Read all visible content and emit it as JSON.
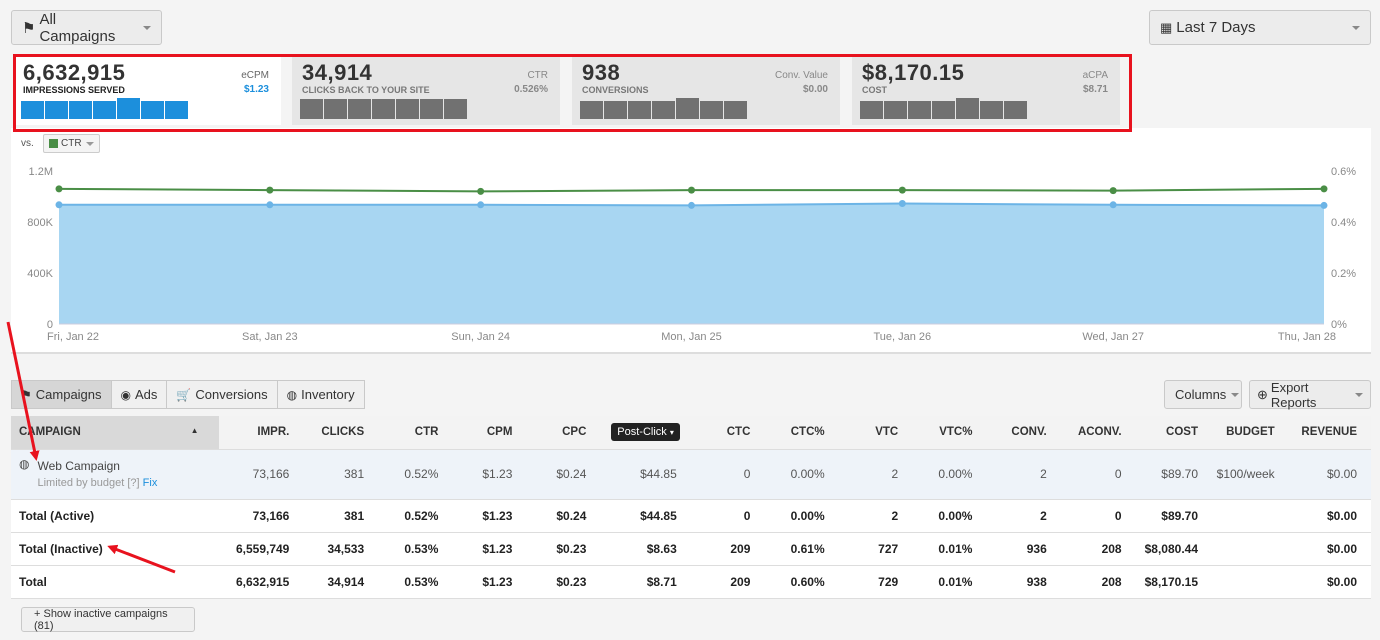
{
  "header": {
    "campaign_select": "All Campaigns",
    "date_select": "Last 7 Days"
  },
  "stats": [
    {
      "value": "6,632,915",
      "label": "IMPRESSIONS SERVED",
      "side_label": "eCPM",
      "side_value": "$1.23"
    },
    {
      "value": "34,914",
      "label": "CLICKS BACK TO YOUR SITE",
      "side_label": "CTR",
      "side_value": "0.526%"
    },
    {
      "value": "938",
      "label": "CONVERSIONS",
      "side_label": "Conv. Value",
      "side_value": "$0.00"
    },
    {
      "value": "$8,170.15",
      "label": "COST",
      "side_label": "aCPA",
      "side_value": "$8.71"
    }
  ],
  "compare": {
    "vs_label": "vs.",
    "metric": "CTR"
  },
  "chart_data": {
    "type": "area",
    "x": [
      "Fri, Jan 22",
      "Sat, Jan 23",
      "Sun, Jan 24",
      "Mon, Jan 25",
      "Tue, Jan 26",
      "Wed, Jan 27",
      "Thu, Jan 28"
    ],
    "series": [
      {
        "values": [
          935000,
          935000,
          935000,
          930000,
          945000,
          935000,
          930000
        ],
        "axis": "left",
        "color": "#6cb4e6",
        "fill": "#a8d6f2"
      },
      {
        "name": "CTR",
        "values": [
          0.53,
          0.525,
          0.52,
          0.525,
          0.525,
          0.523,
          0.53
        ],
        "axis": "right",
        "color": "#4a8e46"
      }
    ],
    "y_left_ticks": [
      "1.2M",
      "800K",
      "400K",
      "0"
    ],
    "y_right_ticks": [
      "0.6%",
      "0.4%",
      "0.2%",
      "0%"
    ],
    "ylim_left": [
      0,
      1200000
    ],
    "ylim_right": [
      0,
      0.6
    ],
    "grid": false
  },
  "tabs": [
    "Campaigns",
    "Ads",
    "Conversions",
    "Inventory"
  ],
  "toolbar": {
    "columns": "Columns",
    "export": "Export Reports"
  },
  "table": {
    "headers": [
      "CAMPAIGN",
      "IMPR.",
      "CLICKS",
      "CTR",
      "CPM",
      "CPC",
      "Post-Click",
      "CTC",
      "CTC%",
      "VTC",
      "VTC%",
      "CONV.",
      "ACONV.",
      "COST",
      "BUDGET",
      "REVENUE"
    ],
    "campaign": {
      "name": "Web Campaign",
      "note": "Limited by budget [?]",
      "fix": "Fix",
      "cells": [
        "73,166",
        "381",
        "0.52%",
        "$1.23",
        "$0.24",
        "$44.85",
        "0",
        "0.00%",
        "2",
        "0.00%",
        "2",
        "0",
        "$89.70",
        "$100/week",
        "$0.00"
      ]
    },
    "totals": [
      {
        "label": "Total (Active)",
        "cells": [
          "73,166",
          "381",
          "0.52%",
          "$1.23",
          "$0.24",
          "$44.85",
          "0",
          "0.00%",
          "2",
          "0.00%",
          "2",
          "0",
          "$89.70",
          "",
          "$0.00"
        ]
      },
      {
        "label": "Total (Inactive)",
        "cells": [
          "6,559,749",
          "34,533",
          "0.53%",
          "$1.23",
          "$0.23",
          "$8.63",
          "209",
          "0.61%",
          "727",
          "0.01%",
          "936",
          "208",
          "$8,080.44",
          "",
          "$0.00"
        ]
      },
      {
        "label": "Total",
        "cells": [
          "6,632,915",
          "34,914",
          "0.53%",
          "$1.23",
          "$0.23",
          "$8.71",
          "209",
          "0.60%",
          "729",
          "0.01%",
          "938",
          "208",
          "$8,170.15",
          "",
          "$0.00"
        ]
      }
    ]
  },
  "footer": {
    "show_inactive": "+ Show inactive campaigns (81)"
  }
}
